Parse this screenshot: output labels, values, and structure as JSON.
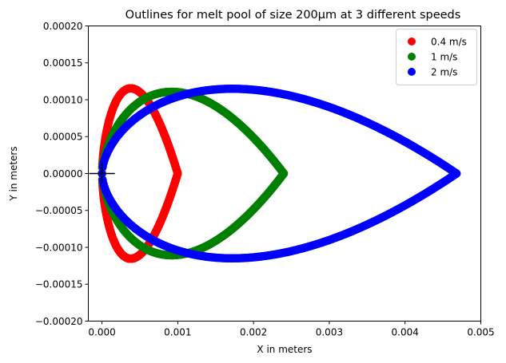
{
  "chart_data": {
    "type": "scatter",
    "title": "Outlines for melt pool of size 200µm at 3 different speeds",
    "xlabel": "X in meters",
    "ylabel": "Y in meters",
    "xlim": [
      -0.00018,
      0.005
    ],
    "ylim": [
      -0.0002,
      0.0002
    ],
    "xticks": [
      0,
      0.001,
      0.002,
      0.003,
      0.004,
      0.005
    ],
    "xtick_labels": [
      "0.000",
      "0.001",
      "0.002",
      "0.003",
      "0.004",
      "0.005"
    ],
    "yticks": [
      -0.0002,
      -0.00015,
      -0.0001,
      -5e-05,
      0,
      5e-05,
      0.0001,
      0.00015,
      0.0002
    ],
    "ytick_labels": [
      "−0.00020",
      "−0.00015",
      "−0.00010",
      "−0.00005",
      "0.00000",
      "0.00005",
      "0.00010",
      "0.00015",
      "0.00020"
    ],
    "grid": false,
    "legend_position": "top-right",
    "origin_marker": {
      "x": 0,
      "y": 0,
      "half_width": 0.00017,
      "half_height": 1.4e-05
    },
    "series": [
      {
        "name": "0.4 m/s",
        "color": "#ff0000",
        "outline": {
          "x_min": 0.0,
          "x_max": 0.001,
          "x_at_max_width": 0.00038,
          "half_width": 9.55e-05
        }
      },
      {
        "name": "1 m/s",
        "color": "#008000",
        "outline": {
          "x_min": 0.0,
          "x_max": 0.0024,
          "x_at_max_width": 0.00092,
          "half_width": 9.25e-05
        }
      },
      {
        "name": "2 m/s",
        "color": "#0000ff",
        "outline": {
          "x_min": 0.0,
          "x_max": 0.00468,
          "x_at_max_width": 0.00172,
          "half_width": 9.15e-05
        }
      }
    ]
  }
}
